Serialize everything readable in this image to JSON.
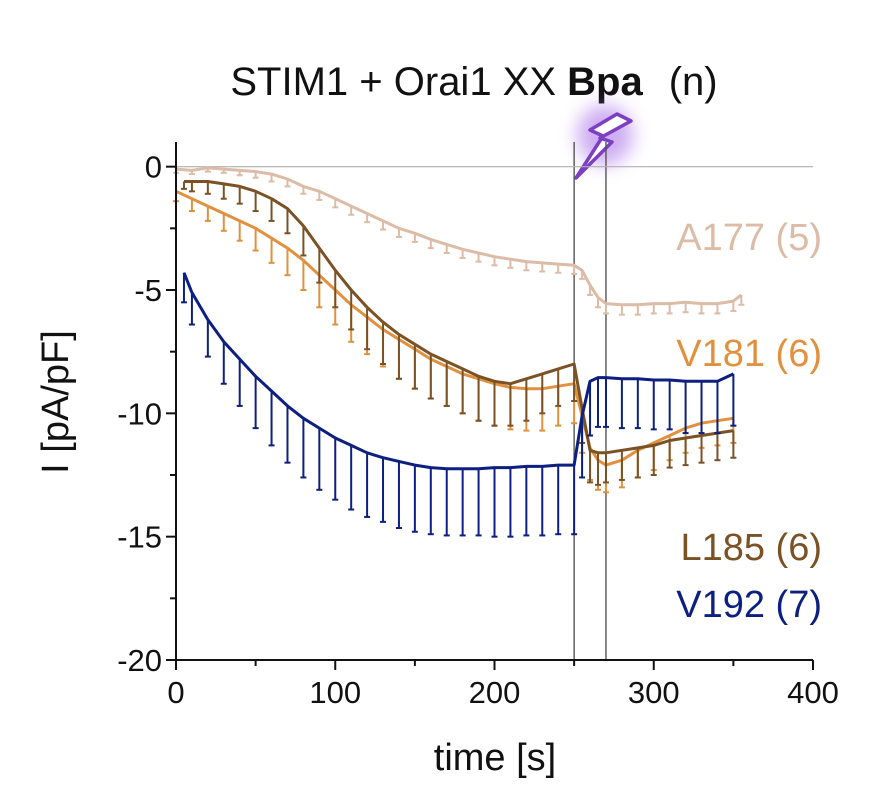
{
  "chart_data": {
    "type": "line",
    "title_prefix": "STIM1 + Orai1 XX ",
    "title_bold": "Bpa",
    "title_suffix": "(n)",
    "xlabel": "time [s]",
    "ylabel": "I [pA/pF]",
    "xlim": [
      0,
      400
    ],
    "ylim": [
      -20,
      1
    ],
    "xticks": [
      0,
      100,
      200,
      300,
      400
    ],
    "yticks": [
      0,
      -5,
      -10,
      -15,
      -20
    ],
    "grid": false,
    "zero_line": true,
    "event_lines_x": [
      250,
      270
    ],
    "event_icon": "lightning-bolt-icon",
    "legend_placement": "right",
    "series": [
      {
        "name": "A177",
        "n": "(5)",
        "label": "A177 (5)",
        "color": "#dcbca6",
        "error_direction": "down",
        "x": [
          0,
          10,
          20,
          30,
          40,
          50,
          60,
          70,
          80,
          90,
          100,
          110,
          120,
          130,
          140,
          150,
          160,
          170,
          180,
          190,
          200,
          210,
          220,
          230,
          240,
          250,
          255,
          260,
          265,
          270,
          280,
          290,
          300,
          310,
          320,
          330,
          340,
          350,
          355
        ],
        "values": [
          -0.1,
          -0.15,
          -0.05,
          -0.1,
          -0.15,
          -0.2,
          -0.3,
          -0.5,
          -0.8,
          -1.0,
          -1.3,
          -1.6,
          -1.9,
          -2.2,
          -2.5,
          -2.7,
          -2.95,
          -3.15,
          -3.35,
          -3.5,
          -3.65,
          -3.75,
          -3.85,
          -3.9,
          -3.95,
          -4.0,
          -4.2,
          -4.8,
          -5.3,
          -5.55,
          -5.6,
          -5.6,
          -5.55,
          -5.55,
          -5.5,
          -5.55,
          -5.55,
          -5.45,
          -5.2
        ],
        "errors": [
          0.15,
          0.15,
          0.15,
          0.15,
          0.2,
          0.25,
          0.3,
          0.3,
          0.3,
          0.35,
          0.35,
          0.35,
          0.35,
          0.35,
          0.35,
          0.35,
          0.35,
          0.35,
          0.35,
          0.35,
          0.35,
          0.35,
          0.35,
          0.35,
          0.35,
          0.35,
          0.35,
          0.4,
          0.4,
          0.4,
          0.4,
          0.4,
          0.4,
          0.4,
          0.4,
          0.4,
          0.4,
          0.4,
          0.4
        ]
      },
      {
        "name": "V181",
        "n": "(6)",
        "label": "V181 (6)",
        "color": "#e0913f",
        "error_direction": "down",
        "x": [
          0,
          10,
          20,
          30,
          40,
          50,
          60,
          70,
          80,
          90,
          100,
          110,
          120,
          130,
          140,
          150,
          160,
          170,
          180,
          190,
          200,
          210,
          220,
          230,
          240,
          250,
          255,
          260,
          265,
          270,
          280,
          290,
          300,
          310,
          320,
          330,
          340,
          350
        ],
        "values": [
          -1.0,
          -1.3,
          -1.6,
          -1.9,
          -2.2,
          -2.5,
          -2.9,
          -3.3,
          -3.8,
          -4.4,
          -5.0,
          -5.6,
          -6.1,
          -6.6,
          -7.0,
          -7.4,
          -7.8,
          -8.1,
          -8.4,
          -8.6,
          -8.8,
          -8.95,
          -9.0,
          -9.0,
          -8.9,
          -8.8,
          -10.1,
          -11.4,
          -11.9,
          -12.1,
          -11.9,
          -11.5,
          -11.2,
          -10.9,
          -10.6,
          -10.4,
          -10.3,
          -10.2
        ],
        "errors": [
          0.4,
          0.5,
          0.6,
          0.7,
          0.8,
          0.9,
          1.0,
          1.1,
          1.2,
          1.3,
          1.4,
          1.5,
          1.5,
          1.5,
          1.6,
          1.6,
          1.6,
          1.6,
          1.6,
          1.7,
          1.7,
          1.7,
          1.7,
          1.7,
          1.6,
          1.6,
          1.5,
          1.3,
          1.2,
          1.1,
          1.1,
          1.1,
          1.1,
          1.0,
          1.0,
          1.0,
          1.0,
          1.0
        ]
      },
      {
        "name": "L185",
        "n": "(6)",
        "label": "L185 (6)",
        "color": "#7a5225",
        "error_direction": "down",
        "x": [
          5,
          10,
          20,
          30,
          40,
          50,
          60,
          70,
          80,
          90,
          100,
          110,
          120,
          130,
          140,
          150,
          160,
          170,
          180,
          190,
          200,
          210,
          220,
          230,
          240,
          250,
          255,
          260,
          265,
          270,
          280,
          290,
          300,
          310,
          320,
          330,
          340,
          350
        ],
        "values": [
          -0.6,
          -0.6,
          -0.6,
          -0.7,
          -0.8,
          -1.0,
          -1.3,
          -1.7,
          -2.4,
          -3.3,
          -4.2,
          -5.0,
          -5.7,
          -6.3,
          -6.8,
          -7.2,
          -7.6,
          -7.9,
          -8.2,
          -8.5,
          -8.7,
          -8.8,
          -8.6,
          -8.4,
          -8.2,
          -8.0,
          -9.8,
          -11.5,
          -11.6,
          -11.6,
          -11.5,
          -11.4,
          -11.3,
          -11.1,
          -11.0,
          -10.9,
          -10.8,
          -10.7
        ],
        "errors": [
          0.3,
          0.4,
          0.5,
          0.6,
          0.7,
          0.8,
          0.9,
          1.0,
          1.2,
          1.4,
          1.5,
          1.6,
          1.7,
          1.7,
          1.8,
          1.8,
          1.8,
          1.8,
          1.8,
          1.8,
          1.8,
          1.7,
          1.7,
          1.6,
          1.5,
          1.5,
          1.4,
          1.3,
          1.3,
          1.2,
          1.2,
          1.2,
          1.2,
          1.1,
          1.1,
          1.1,
          1.1,
          1.1
        ]
      },
      {
        "name": "V192",
        "n": "(7)",
        "label": "V192 (7)",
        "color": "#0d1f80",
        "error_direction": "down",
        "x": [
          5,
          10,
          20,
          30,
          40,
          50,
          60,
          70,
          80,
          90,
          100,
          110,
          120,
          130,
          140,
          150,
          160,
          170,
          180,
          190,
          200,
          210,
          220,
          230,
          240,
          250,
          255,
          260,
          265,
          270,
          280,
          290,
          300,
          310,
          320,
          330,
          340,
          350
        ],
        "values": [
          -4.3,
          -5.1,
          -6.2,
          -7.1,
          -7.8,
          -8.5,
          -9.1,
          -9.7,
          -10.2,
          -10.6,
          -11.0,
          -11.3,
          -11.6,
          -11.8,
          -11.95,
          -12.1,
          -12.2,
          -12.25,
          -12.25,
          -12.25,
          -12.2,
          -12.2,
          -12.15,
          -12.15,
          -12.1,
          -12.1,
          -10.1,
          -8.7,
          -8.55,
          -8.55,
          -8.6,
          -8.6,
          -8.65,
          -8.65,
          -8.7,
          -8.7,
          -8.7,
          -8.4
        ],
        "errors": [
          1.2,
          1.3,
          1.5,
          1.7,
          1.9,
          2.1,
          2.2,
          2.3,
          2.4,
          2.5,
          2.5,
          2.6,
          2.6,
          2.6,
          2.7,
          2.7,
          2.7,
          2.7,
          2.7,
          2.7,
          2.8,
          2.8,
          2.8,
          2.8,
          2.8,
          2.8,
          2.5,
          2.2,
          2.0,
          2.0,
          2.0,
          2.0,
          2.0,
          2.0,
          2.1,
          2.1,
          2.1,
          2.1
        ]
      }
    ]
  }
}
